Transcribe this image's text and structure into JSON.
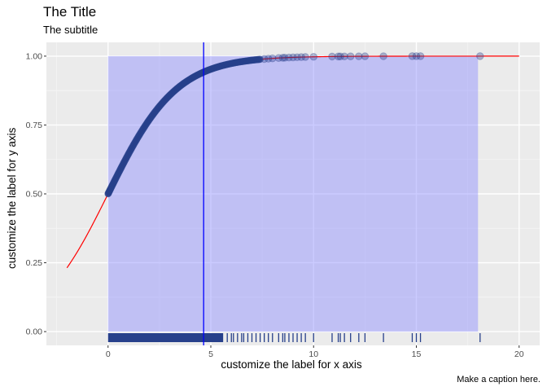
{
  "chart_data": {
    "type": "scatter",
    "title": "The Title",
    "subtitle": "The subtitle",
    "caption": "Make a caption here.",
    "xlabel": "customize the label for x axis",
    "ylabel": "customize the label for y axis",
    "xlim": [
      -3,
      21
    ],
    "ylim": [
      -0.05,
      1.05
    ],
    "x_ticks": [
      0,
      5,
      10,
      15,
      20
    ],
    "y_ticks": [
      0.0,
      0.25,
      0.5,
      0.75,
      1.0
    ],
    "x_tick_labels": [
      "0",
      "5",
      "10",
      "15",
      "20"
    ],
    "y_tick_labels": [
      "0.00",
      "0.25",
      "0.50",
      "0.75",
      "1.00"
    ],
    "grid": true,
    "shaded_region": {
      "x": [
        0,
        18
      ],
      "y": [
        0,
        1
      ],
      "color": "#8c8cff"
    },
    "vertical_line": {
      "x": 4.65,
      "color": "#0000ff"
    },
    "curve": {
      "name": "fitted",
      "x_range": [
        -2,
        20
      ],
      "function": "1/(1+exp(-0.6*x))",
      "color": "#ff0000"
    },
    "points_color": "#27408b",
    "dense_point_range": [
      0,
      7.4
    ],
    "sparse_points_x": [
      7.6,
      7.8,
      8.0,
      8.3,
      8.5,
      8.6,
      8.8,
      9.0,
      9.2,
      9.4,
      9.6,
      10.0,
      10.9,
      11.2,
      11.3,
      11.5,
      11.8,
      12.2,
      12.5,
      13.4,
      14.8,
      15.0,
      15.2,
      18.1
    ],
    "rug_color": "#27408b"
  }
}
